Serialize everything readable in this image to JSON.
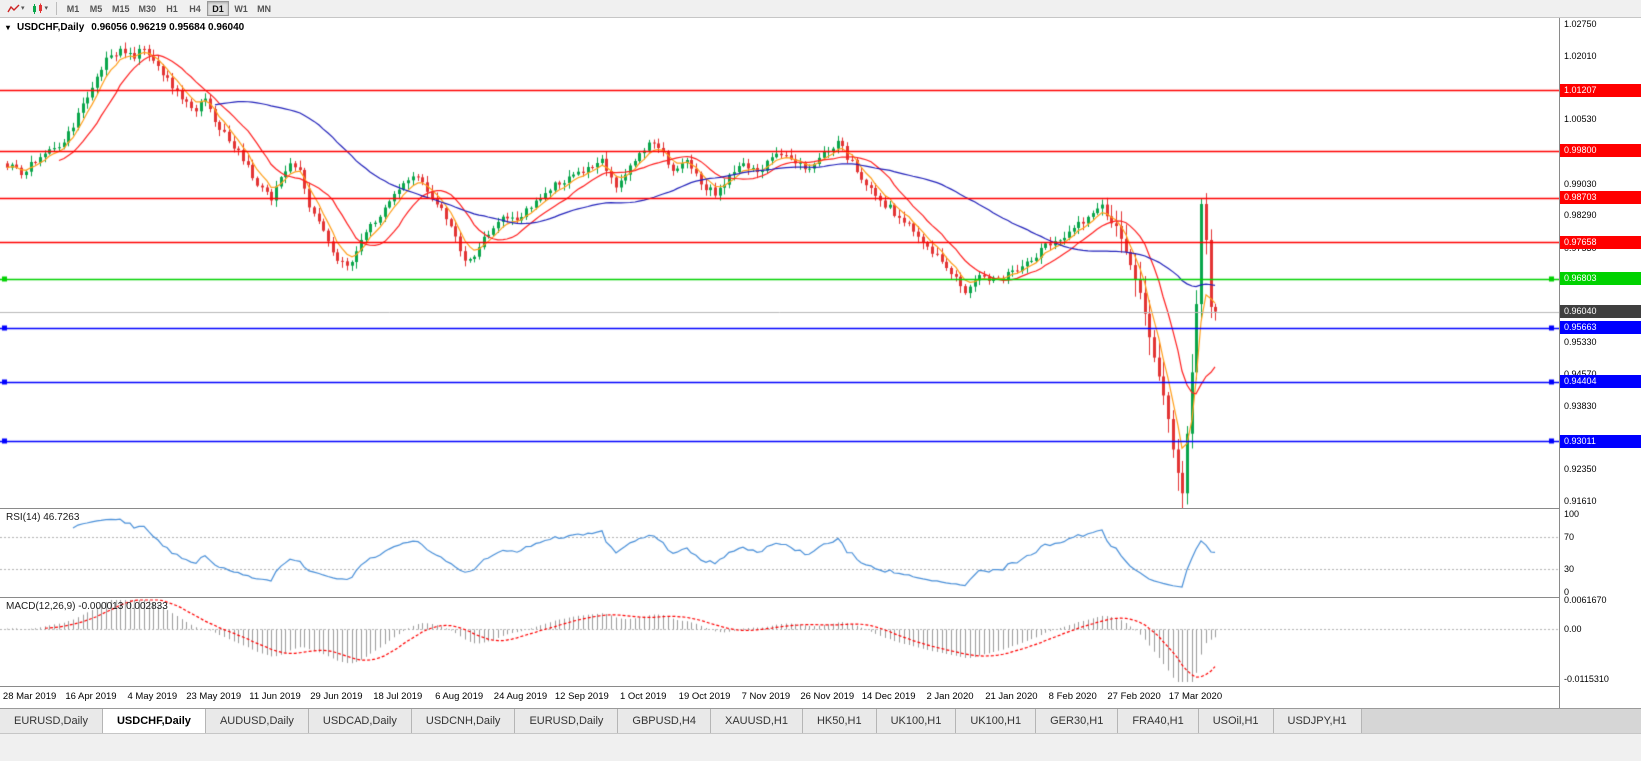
{
  "toolbar": {
    "icons": [
      {
        "name": "line-chart-icon"
      },
      {
        "name": "candlestick-chart-icon"
      }
    ],
    "dropdown_caret": "▾",
    "timeframes": [
      "M1",
      "M5",
      "M15",
      "M30",
      "H1",
      "H4",
      "D1",
      "W1",
      "MN"
    ],
    "active_timeframe": "D1"
  },
  "chart_header": {
    "collapse_icon": "▾",
    "symbol_text": "USDCHF,Daily",
    "ohlc_text": "0.96056 0.96219 0.95684 0.96040"
  },
  "tabs": {
    "items": [
      "EURUSD,Daily",
      "USDCHF,Daily",
      "AUDUSD,Daily",
      "USDCAD,Daily",
      "USDCNH,Daily",
      "EURUSD,Daily",
      "GBPUSD,H4",
      "XAUUSD,H1",
      "HK50,H1",
      "UK100,H1",
      "UK100,H1",
      "GER30,H1",
      "FRA40,H1",
      "USOil,H1",
      "USDJPY,H1"
    ],
    "active_index": 1
  },
  "chart_data": {
    "type": "candlestick",
    "symbol": "USDCHF",
    "timeframe": "Daily",
    "ohlc_current": {
      "open": 0.96056,
      "high": 0.96219,
      "low": 0.95684,
      "close": 0.9604
    },
    "x_labels": [
      "28 Mar 2019",
      "16 Apr 2019",
      "4 May 2019",
      "23 May 2019",
      "11 Jun 2019",
      "29 Jun 2019",
      "18 Jul 2019",
      "6 Aug 2019",
      "24 Aug 2019",
      "12 Sep 2019",
      "1 Oct 2019",
      "19 Oct 2019",
      "7 Nov 2019",
      "26 Nov 2019",
      "14 Dec 2019",
      "2 Jan 2020",
      "21 Jan 2020",
      "8 Feb 2020",
      "27 Feb 2020",
      "17 Mar 2020"
    ],
    "price_axis": {
      "visible_ticks": [
        "1.02750",
        "1.02010",
        "1.00530",
        "0.99030",
        "0.98290",
        "0.97530",
        "0.95330",
        "0.94570",
        "0.93830",
        "0.92350",
        "0.91610"
      ],
      "plot_max": 1.029,
      "plot_min": 0.9145
    },
    "horizontal_levels": [
      {
        "label": "1.01207",
        "price": 1.01207,
        "color": "#ff0000",
        "handles": false
      },
      {
        "label": "0.99800",
        "price": 0.998,
        "color": "#ff0000",
        "handles": false
      },
      {
        "label": "0.98703",
        "price": 0.98703,
        "color": "#ff0000",
        "handles": false
      },
      {
        "label": "0.97658",
        "price": 0.97658,
        "color": "#ff0000",
        "handles": false
      },
      {
        "label": "0.96803",
        "price": 0.96803,
        "color": "#00d200",
        "handles": true
      },
      {
        "label": "0.95663",
        "price": 0.95663,
        "color": "#0000ff",
        "handles": true
      },
      {
        "label": "0.94404",
        "price": 0.94404,
        "color": "#0000ff",
        "handles": true
      },
      {
        "label": "0.93011",
        "price": 0.93011,
        "color": "#0000ff",
        "handles": true
      }
    ],
    "current_price": {
      "label": "0.96040",
      "value": 0.9604,
      "badge_color": "#3f3f3f",
      "line_color": "#b8b8b8"
    },
    "candles": {
      "count": 257,
      "up_color": "#0aa64b",
      "down_color": "#e33434",
      "close_keyframes": [
        [
          0,
          0.9945
        ],
        [
          3,
          0.993
        ],
        [
          6,
          0.9955
        ],
        [
          9,
          0.9975
        ],
        [
          12,
          1.0
        ],
        [
          15,
          1.006
        ],
        [
          18,
          1.013
        ],
        [
          21,
          1.0195
        ],
        [
          24,
          1.0215
        ],
        [
          27,
          1.02
        ],
        [
          29,
          1.022
        ],
        [
          31,
          1.0185
        ],
        [
          34,
          1.0145
        ],
        [
          37,
          1.01
        ],
        [
          40,
          1.0075
        ],
        [
          42,
          1.011
        ],
        [
          44,
          1.004
        ],
        [
          47,
          1.0005
        ],
        [
          50,
          0.996
        ],
        [
          53,
          0.9905
        ],
        [
          56,
          0.987
        ],
        [
          58,
          0.9915
        ],
        [
          60,
          0.995
        ],
        [
          62,
          0.993
        ],
        [
          64,
          0.9855
        ],
        [
          67,
          0.979
        ],
        [
          70,
          0.973
        ],
        [
          72,
          0.9705
        ],
        [
          74,
          0.9745
        ],
        [
          77,
          0.98
        ],
        [
          80,
          0.985
        ],
        [
          83,
          0.9895
        ],
        [
          86,
          0.9925
        ],
        [
          89,
          0.989
        ],
        [
          92,
          0.9845
        ],
        [
          95,
          0.978
        ],
        [
          97,
          0.9725
        ],
        [
          99,
          0.974
        ],
        [
          102,
          0.979
        ],
        [
          105,
          0.983
        ],
        [
          108,
          0.981
        ],
        [
          111,
          0.9855
        ],
        [
          114,
          0.9885
        ],
        [
          118,
          0.991
        ],
        [
          122,
          0.9935
        ],
        [
          126,
          0.9955
        ],
        [
          129,
          0.99
        ],
        [
          132,
          0.994
        ],
        [
          135,
          0.9985
        ],
        [
          137,
          1.0005
        ],
        [
          139,
          0.997
        ],
        [
          141,
          0.9925
        ],
        [
          144,
          0.9955
        ],
        [
          147,
          0.9905
        ],
        [
          150,
          0.988
        ],
        [
          153,
          0.992
        ],
        [
          156,
          0.995
        ],
        [
          159,
          0.993
        ],
        [
          161,
          0.995
        ],
        [
          164,
          0.9975
        ],
        [
          167,
          0.995
        ],
        [
          170,
          0.993
        ],
        [
          173,
          0.998
        ],
        [
          176,
          1.0
        ],
        [
          179,
          0.995
        ],
        [
          182,
          0.9895
        ],
        [
          185,
          0.9865
        ],
        [
          188,
          0.9835
        ],
        [
          191,
          0.9805
        ],
        [
          194,
          0.977
        ],
        [
          197,
          0.973
        ],
        [
          200,
          0.97
        ],
        [
          203,
          0.9655
        ],
        [
          206,
          0.969
        ],
        [
          209,
          0.9675
        ],
        [
          213,
          0.97
        ],
        [
          217,
          0.9725
        ],
        [
          221,
          0.9765
        ],
        [
          225,
          0.979
        ],
        [
          229,
          0.9825
        ],
        [
          232,
          0.9845
        ],
        [
          235,
          0.98
        ],
        [
          238,
          0.972
        ],
        [
          240,
          0.964
        ],
        [
          242,
          0.954
        ],
        [
          244,
          0.945
        ],
        [
          246,
          0.935
        ],
        [
          248,
          0.922
        ],
        [
          249,
          0.918
        ],
        [
          250,
          0.932
        ],
        [
          251,
          0.946
        ],
        [
          252,
          0.962
        ],
        [
          253,
          0.986
        ],
        [
          254,
          0.978
        ],
        [
          255,
          0.962
        ],
        [
          256,
          0.9604
        ]
      ],
      "volatility_keyframes": [
        [
          0,
          0.0016
        ],
        [
          230,
          0.0016
        ],
        [
          238,
          0.0042
        ],
        [
          249,
          0.0052
        ],
        [
          252,
          0.0048
        ],
        [
          256,
          0.0036
        ]
      ]
    },
    "moving_averages": [
      {
        "name": "fast-ema",
        "period": 5,
        "method": "ema",
        "color": "#ff9f1a"
      },
      {
        "name": "mid-sma",
        "period": 12,
        "method": "sma",
        "color": "#ff2020"
      },
      {
        "name": "slow-sma",
        "period": 45,
        "method": "sma",
        "color": "#2222bb"
      }
    ],
    "rsi": {
      "label": "RSI(14) 46.7263",
      "period": 14,
      "current": 46.7263,
      "line_color": "#4a90d9",
      "level_lines": [
        70,
        30
      ],
      "axis_labels": [
        {
          "text": "100",
          "value": 100
        },
        {
          "text": "70",
          "value": 70
        },
        {
          "text": "30",
          "value": 30
        },
        {
          "text": "0",
          "value": 0
        }
      ]
    },
    "macd": {
      "label": "MACD(12,26,9) -0.000013 0.002833",
      "fast": 12,
      "slow": 26,
      "signal": 9,
      "current_macd": -1.3e-05,
      "current_signal": 0.002833,
      "hist_color": "#9c9c9c",
      "signal_color": "#ff0000",
      "scale_max": 0.006167,
      "scale_min": -0.011531,
      "axis_labels": [
        {
          "text": "0.0061670",
          "value": 0.006167
        },
        {
          "text": "0.00",
          "value": 0
        },
        {
          "text": "-0.0115310",
          "value": -0.011531
        }
      ]
    }
  }
}
